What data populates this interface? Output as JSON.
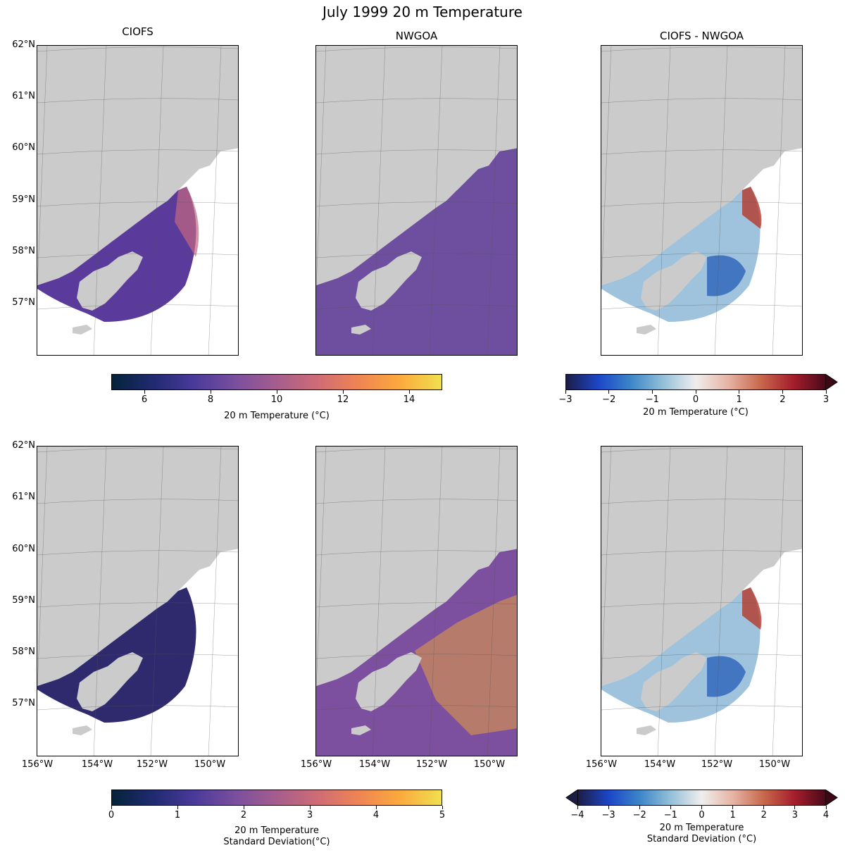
{
  "figure": {
    "title": "July 1999 20 m Temperature",
    "column_titles": [
      "CIOFS",
      "NWGOA",
      "CIOFS - NWGOA"
    ],
    "lat_labels": [
      "62°N",
      "61°N",
      "60°N",
      "59°N",
      "58°N",
      "57°N"
    ],
    "lon_labels": [
      "156°W",
      "154°W",
      "152°W",
      "150°W"
    ],
    "colorbars": {
      "mean_temp": {
        "ticks": [
          "6",
          "8",
          "10",
          "12",
          "14"
        ],
        "label": "20 m Temperature (°C)",
        "range": [
          5,
          15
        ],
        "colormap": "thermal"
      },
      "mean_diff": {
        "ticks": [
          "−3",
          "−2",
          "−1",
          "0",
          "1",
          "2",
          "3"
        ],
        "label": "20 m Temperature (°C)",
        "range": [
          -3,
          3
        ],
        "colormap": "balance",
        "extend": "max"
      },
      "std_temp": {
        "ticks": [
          "0",
          "1",
          "2",
          "3",
          "4",
          "5"
        ],
        "label_line1": "20 m Temperature",
        "label_line2": "Standard Deviation(°C)",
        "range": [
          0,
          5
        ],
        "colormap": "thermal"
      },
      "std_diff": {
        "ticks": [
          "−4",
          "−3",
          "−2",
          "−1",
          "0",
          "1",
          "2",
          "3",
          "4"
        ],
        "label_line1": "20 m Temperature",
        "label_line2": "Standard Deviation (°C)",
        "range": [
          -4,
          4
        ],
        "colormap": "balance",
        "extend": "both"
      }
    },
    "colors": {
      "land": "#cbcbcb",
      "ocean_ciofs_mean": "#5a3a9a",
      "ocean_nwgoa_mean": "#6e4e9e",
      "ocean_ciofs_std": "#2f2a6e",
      "ocean_nwgoa_std": "#7d4f9f",
      "diff_base": "#9fc3dc"
    }
  }
}
